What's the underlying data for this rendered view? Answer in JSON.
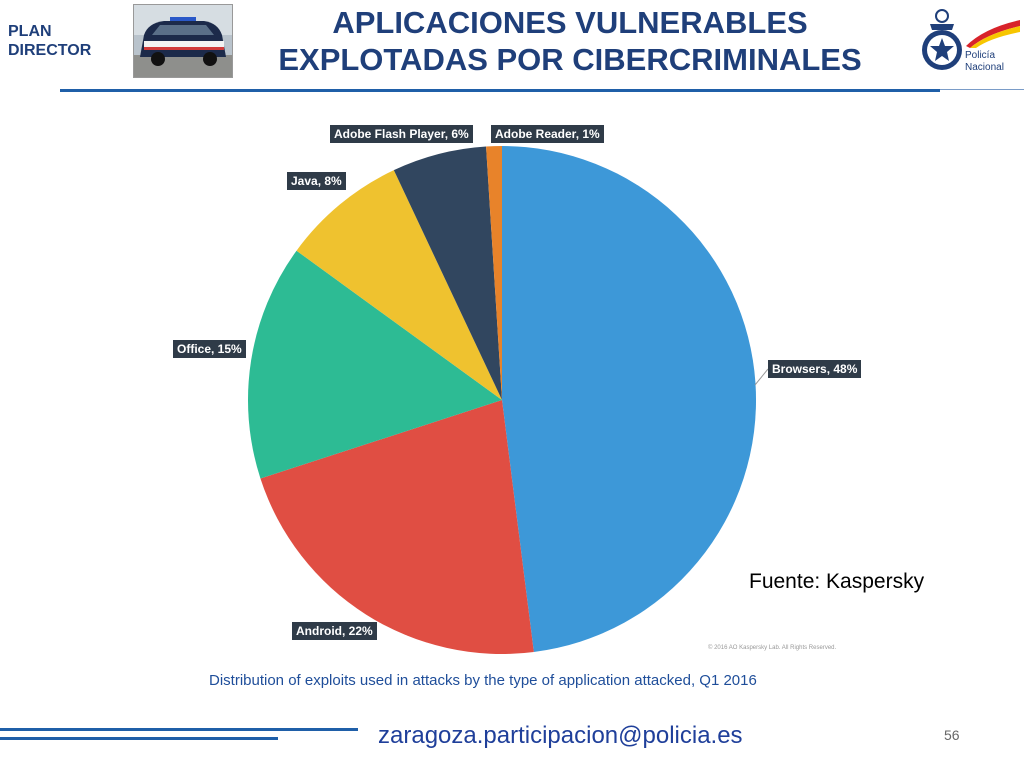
{
  "header": {
    "plan_line1": "PLAN",
    "plan_line2": "DIRECTOR",
    "title_line1": "APLICACIONES VULNERABLES",
    "title_line2": "EXPLOTADAS POR CIBERCRIMINALES",
    "logo_line1": "Policía",
    "logo_line2": "Nacional"
  },
  "chart_data": {
    "type": "pie",
    "title": "Distribution of exploits used in attacks by the type of application attacked, Q1 2016",
    "copyright": "© 2016 AO Kaspersky Lab. All Rights Reserved.",
    "slices": [
      {
        "label": "Browsers, 48%",
        "value": 48,
        "color": "#3d98d8"
      },
      {
        "label": "Android, 22%",
        "value": 22,
        "color": "#e04e43"
      },
      {
        "label": "Office, 15%",
        "value": 15,
        "color": "#2dbb94"
      },
      {
        "label": "Java, 8%",
        "value": 8,
        "color": "#efc22f"
      },
      {
        "label": "Adobe Flash Player, 6%",
        "value": 6,
        "color": "#31465f"
      },
      {
        "label": "Adobe Reader, 1%",
        "value": 1,
        "color": "#e8832a"
      }
    ]
  },
  "source": "Fuente: Kaspersky",
  "footer": {
    "email": "zaragoza.participacion@policia.es",
    "page_number": "56"
  }
}
